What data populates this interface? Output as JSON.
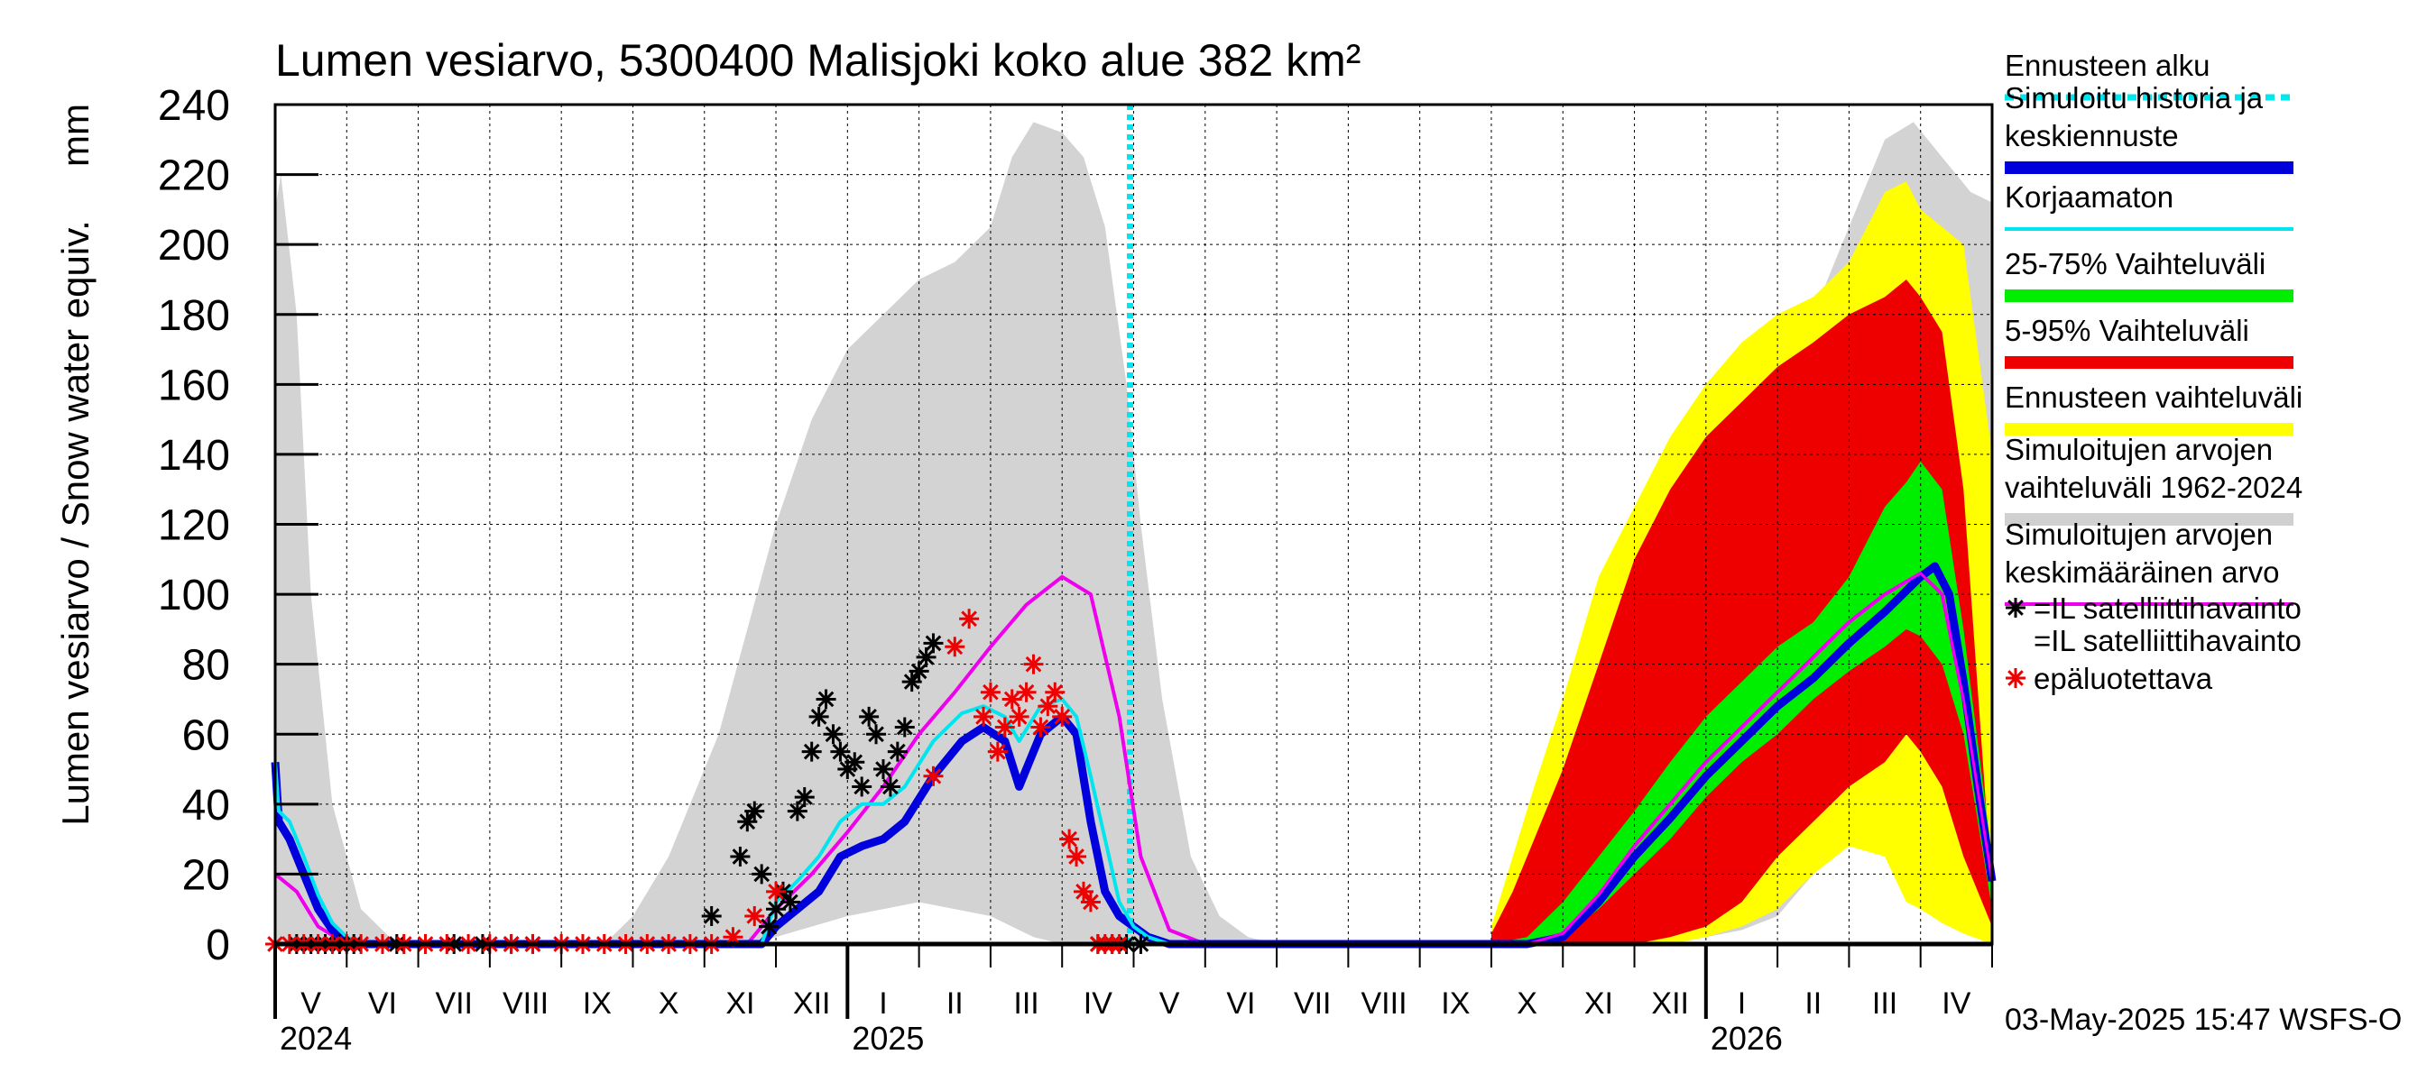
{
  "chart_data": {
    "type": "area",
    "title": "Lumen vesiarvo, 5300400 Malisjoki koko alue 382 km²",
    "ylabel": "Lumen vesiarvo / Snow water equiv.",
    "yunit": "mm",
    "ylim": [
      0,
      240
    ],
    "yticks": [
      0,
      20,
      40,
      60,
      80,
      100,
      120,
      140,
      160,
      180,
      200,
      220,
      240
    ],
    "x_months": [
      "V",
      "VI",
      "VII",
      "VIII",
      "IX",
      "X",
      "XI",
      "XII",
      "I",
      "II",
      "III",
      "IV",
      "V",
      "VI",
      "VII",
      "VIII",
      "IX",
      "X",
      "XI",
      "XII",
      "I",
      "II",
      "III",
      "IV"
    ],
    "x_years": [
      "2024",
      "2025",
      "2026"
    ],
    "forecast_start_month_index": 12.0,
    "timestamp": "03-May-2025 15:47 WSFS-O",
    "legend": [
      {
        "label": "Ennusteen alku",
        "color": "#00e5ee",
        "style": "dotted"
      },
      {
        "label": "Simuloitu historia ja keskiennuste",
        "color": "#0000dd",
        "style": "thick"
      },
      {
        "label": "Korjaamaton",
        "color": "#00e5ee",
        "style": "line"
      },
      {
        "label": "25-75% Vaihteluväli",
        "color": "#00ee00",
        "style": "band"
      },
      {
        "label": "5-95% Vaihteluväli",
        "color": "#ee0000",
        "style": "band"
      },
      {
        "label": "Ennusteen vaihteluväli",
        "color": "#ffff00",
        "style": "band"
      },
      {
        "label": "Simuloitujen arvojen vaihteluväli 1962-2024",
        "color": "#d0d0d0",
        "style": "band"
      },
      {
        "label": "Simuloitujen arvojen keskimääräinen arvo",
        "color": "#ee00ee",
        "style": "line"
      },
      {
        "label": "=IL satelliittihavainto",
        "color": "#000000",
        "style": "star"
      },
      {
        "label": "=IL satelliittihavainto epäluotettava",
        "color": "#ee0000",
        "style": "star"
      }
    ],
    "series": [
      {
        "name": "Simuloitujen arvojen vaihteluväli 1962-2024",
        "kind": "band",
        "color": "#d3d3d3",
        "x": [
          0,
          0.08,
          0.3,
          0.5,
          0.8,
          1.2,
          1.6,
          2.0,
          3.0,
          4.0,
          4.6,
          5.0,
          5.5,
          5.8,
          6.2,
          6.6,
          7.0,
          7.5,
          8.0,
          8.5,
          9.0,
          9.5,
          10.0,
          10.3,
          10.6,
          11.0,
          11.3,
          11.6,
          11.9,
          12.1,
          12.4,
          12.8,
          13.2,
          13.6,
          14,
          15,
          16,
          17,
          17.6,
          18,
          18.5,
          19,
          19.5,
          20,
          20.5,
          21,
          21.5,
          22,
          22.5,
          22.9,
          23.3,
          23.7,
          24.0
        ],
        "low": [
          0,
          0,
          0,
          0,
          0,
          0,
          0,
          0,
          0,
          0,
          0,
          0,
          0,
          0,
          0,
          0,
          2,
          5,
          8,
          10,
          12,
          10,
          8,
          5,
          2,
          0,
          0,
          0,
          0,
          0,
          0,
          0,
          0,
          0,
          0,
          0,
          0,
          0,
          0,
          0,
          0,
          0,
          0,
          2,
          4,
          8,
          20,
          40,
          45,
          35,
          20,
          8,
          3
        ],
        "high": [
          210,
          220,
          180,
          100,
          40,
          10,
          2,
          0,
          0,
          0,
          0,
          8,
          25,
          40,
          60,
          90,
          120,
          150,
          170,
          180,
          190,
          195,
          205,
          225,
          235,
          232,
          225,
          205,
          160,
          120,
          70,
          25,
          8,
          2,
          0,
          0,
          0,
          0,
          5,
          15,
          45,
          95,
          135,
          145,
          160,
          170,
          180,
          205,
          230,
          235,
          225,
          215,
          212
        ]
      },
      {
        "name": "Ennusteen vaihteluväli",
        "kind": "band",
        "color": "#ffff00",
        "x": [
          17.0,
          17.3,
          17.6,
          18.0,
          18.5,
          19.0,
          19.5,
          20.0,
          20.5,
          21.0,
          21.5,
          22.0,
          22.5,
          22.8,
          23.0,
          23.3,
          23.6,
          24.0
        ],
        "low": [
          0,
          0,
          0,
          0,
          0,
          0,
          0,
          2,
          5,
          10,
          20,
          28,
          25,
          12,
          10,
          6,
          3,
          0
        ],
        "high": [
          5,
          25,
          45,
          70,
          105,
          125,
          145,
          160,
          172,
          180,
          185,
          195,
          215,
          218,
          210,
          205,
          200,
          140
        ]
      },
      {
        "name": "5-95% Vaihteluväli",
        "kind": "band",
        "color": "#ee0000",
        "x": [
          17.0,
          17.3,
          17.6,
          18.0,
          18.5,
          19.0,
          19.5,
          20.0,
          20.5,
          21.0,
          21.5,
          22.0,
          22.5,
          22.8,
          23.0,
          23.3,
          23.6,
          24.0
        ],
        "low": [
          0,
          0,
          0,
          0,
          0,
          0,
          2,
          5,
          12,
          25,
          35,
          45,
          52,
          60,
          55,
          45,
          25,
          5
        ],
        "high": [
          3,
          15,
          30,
          50,
          80,
          110,
          130,
          145,
          155,
          165,
          172,
          180,
          185,
          190,
          185,
          175,
          130,
          15
        ]
      },
      {
        "name": "25-75% Vaihteluväli",
        "kind": "band",
        "color": "#00ee00",
        "x": [
          17.0,
          17.5,
          18.0,
          18.5,
          19.0,
          19.5,
          20.0,
          20.5,
          21.0,
          21.5,
          22.0,
          22.5,
          22.8,
          23.0,
          23.3,
          23.6,
          24.0
        ],
        "low": [
          0,
          0,
          2,
          10,
          20,
          30,
          42,
          52,
          60,
          70,
          78,
          85,
          90,
          88,
          80,
          60,
          10
        ],
        "high": [
          0,
          2,
          12,
          25,
          38,
          52,
          65,
          75,
          85,
          92,
          105,
          125,
          132,
          138,
          130,
          90,
          25
        ]
      },
      {
        "name": "Simuloitujen arvojen keskimääräinen arvo",
        "kind": "line",
        "color": "#ee00ee",
        "x": [
          0,
          0.3,
          0.6,
          1.0,
          6.6,
          6.8,
          7.0,
          7.5,
          8.0,
          8.5,
          9.0,
          9.5,
          10.0,
          10.5,
          11.0,
          11.4,
          11.8,
          12.1,
          12.5,
          13,
          17,
          17.5,
          18,
          18.5,
          19,
          19.5,
          20,
          20.5,
          21,
          21.5,
          22,
          22.5,
          23.0,
          23.3,
          23.6,
          24.0
        ],
        "y": [
          20,
          15,
          5,
          0,
          0,
          5,
          10,
          20,
          32,
          45,
          60,
          72,
          85,
          97,
          105,
          100,
          65,
          25,
          4,
          0,
          0,
          0,
          3,
          14,
          28,
          40,
          52,
          62,
          72,
          82,
          92,
          100,
          106,
          100,
          70,
          18
        ]
      },
      {
        "name": "Simuloitu historia ja keskiennuste",
        "kind": "line",
        "color": "#0000dd",
        "x": [
          0,
          0.05,
          0.2,
          0.4,
          0.6,
          0.8,
          1.0,
          1.2,
          4.5,
          5.0,
          6.0,
          6.8,
          7.0,
          7.3,
          7.6,
          7.9,
          8.2,
          8.5,
          8.8,
          9.2,
          9.6,
          9.9,
          10.2,
          10.4,
          10.7,
          11.0,
          11.2,
          11.4,
          11.6,
          11.8,
          12.0,
          12.2,
          12.5,
          13,
          17,
          17.5,
          18,
          18.5,
          19,
          19.5,
          20,
          20.5,
          21,
          21.5,
          22,
          22.5,
          23.0,
          23.2,
          23.4,
          23.6,
          23.8,
          24.0
        ],
        "y": [
          52,
          35,
          30,
          20,
          10,
          4,
          1,
          0,
          0,
          0,
          0,
          0,
          5,
          10,
          15,
          25,
          28,
          30,
          35,
          48,
          58,
          62,
          58,
          45,
          60,
          65,
          60,
          35,
          15,
          8,
          5,
          2,
          0,
          0,
          0,
          0,
          2,
          12,
          25,
          36,
          48,
          58,
          68,
          76,
          86,
          95,
          105,
          108,
          100,
          75,
          45,
          18
        ]
      },
      {
        "name": "Korjaamaton",
        "kind": "line",
        "color": "#00e5ee",
        "x": [
          0,
          0.05,
          0.2,
          0.4,
          0.6,
          0.8,
          1.0,
          1.2,
          4.5,
          5.0,
          6.0,
          6.8,
          7.0,
          7.3,
          7.6,
          7.9,
          8.2,
          8.5,
          8.8,
          9.2,
          9.6,
          9.9,
          10.2,
          10.4,
          10.7,
          11.0,
          11.2,
          11.4,
          11.6,
          11.8,
          12.0,
          12.2,
          12.5,
          13
        ],
        "y": [
          52,
          38,
          35,
          25,
          14,
          6,
          2,
          0,
          0,
          0,
          0,
          0,
          12,
          18,
          25,
          35,
          40,
          40,
          45,
          58,
          66,
          68,
          65,
          58,
          68,
          70,
          65,
          48,
          30,
          12,
          5,
          2,
          0,
          0
        ]
      },
      {
        "name": "=IL satelliittihavainto",
        "kind": "stars",
        "color": "#000000",
        "x": [
          0.3,
          0.5,
          0.7,
          0.9,
          1.1,
          1.7,
          2.5,
          2.9,
          3.3,
          3.6,
          6.1,
          6.5,
          6.6,
          6.7,
          6.8,
          6.9,
          7.0,
          7.1,
          7.2,
          7.3,
          7.4,
          7.5,
          7.6,
          7.7,
          7.8,
          7.9,
          8.0,
          8.1,
          8.2,
          8.3,
          8.4,
          8.5,
          8.6,
          8.7,
          8.8,
          8.9,
          9.0,
          9.1,
          9.2,
          11.5,
          11.7,
          11.9,
          12.1
        ],
        "y": [
          0,
          0,
          0,
          0,
          0,
          0,
          0,
          0,
          0,
          0,
          8,
          25,
          35,
          38,
          20,
          5,
          10,
          15,
          12,
          38,
          42,
          55,
          65,
          70,
          60,
          55,
          50,
          52,
          45,
          65,
          60,
          50,
          45,
          55,
          62,
          75,
          78,
          82,
          86,
          0,
          0,
          0,
          0
        ]
      },
      {
        "name": "=IL satelliittihavainto epäluotettava",
        "kind": "stars",
        "color": "#ee0000",
        "x": [
          0.0,
          0.2,
          0.4,
          0.6,
          0.8,
          1.0,
          1.2,
          1.5,
          1.8,
          2.1,
          2.4,
          2.7,
          3.0,
          3.3,
          3.6,
          4.0,
          4.3,
          4.6,
          4.9,
          5.2,
          5.5,
          5.8,
          6.1,
          6.4,
          6.7,
          7.0,
          9.2,
          9.5,
          9.7,
          9.9,
          10.0,
          10.1,
          10.2,
          10.3,
          10.4,
          10.5,
          10.6,
          10.7,
          10.8,
          10.9,
          11.0,
          11.1,
          11.2,
          11.3,
          11.4,
          11.5,
          11.6,
          11.7,
          11.8
        ],
        "y": [
          0,
          0,
          0,
          0,
          0,
          0,
          0,
          0,
          0,
          0,
          0,
          0,
          0,
          0,
          0,
          0,
          0,
          0,
          0,
          0,
          0,
          0,
          0,
          2,
          8,
          15,
          48,
          85,
          93,
          65,
          72,
          55,
          62,
          70,
          65,
          72,
          80,
          62,
          68,
          72,
          65,
          30,
          25,
          15,
          12,
          0,
          0,
          0,
          0
        ]
      }
    ]
  }
}
